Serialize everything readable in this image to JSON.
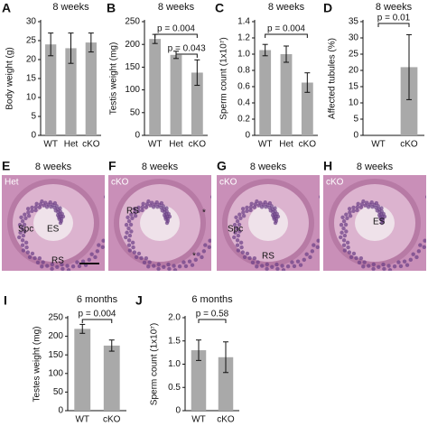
{
  "chart_data": [
    {
      "type": "bar",
      "letter": "A",
      "title": "8 weeks",
      "ylabel": "Body weight (g)",
      "categories": [
        "WT",
        "Het",
        "cKO"
      ],
      "values": [
        24,
        23,
        24.5
      ],
      "errors": [
        3,
        4,
        2.5
      ],
      "color": "#a9a9a9",
      "ylim": [
        0,
        30
      ],
      "yticks": [
        0,
        5,
        10,
        15,
        20,
        25,
        30
      ],
      "annotations": []
    },
    {
      "type": "bar",
      "letter": "B",
      "title": "8 weeks",
      "ylabel": "Testis weight (mg)",
      "categories": [
        "WT",
        "Het",
        "cKO"
      ],
      "values": [
        212,
        177,
        138
      ],
      "errors": [
        10,
        8,
        28
      ],
      "color": "#a9a9a9",
      "ylim": [
        0,
        250
      ],
      "yticks": [
        0,
        50,
        100,
        150,
        200,
        250
      ],
      "annotations": [
        "p = 0.004",
        "p = 0.043"
      ]
    },
    {
      "type": "bar",
      "letter": "C",
      "title": "8 weeks",
      "ylabel": "Sperm count (1x10⁷)",
      "categories": [
        "WT",
        "Het",
        "cKO"
      ],
      "values": [
        1.05,
        1.0,
        0.65
      ],
      "errors": [
        0.07,
        0.1,
        0.12
      ],
      "color": "#a9a9a9",
      "ylim": [
        0,
        1.4
      ],
      "yticks": [
        0,
        0.2,
        0.4,
        0.6,
        0.8,
        {
          "value": 1,
          "label": "1.0"
        },
        1.2,
        1.4
      ],
      "annotations": [
        "p = 0.004"
      ]
    },
    {
      "type": "bar",
      "letter": "D",
      "title": "8 weeks",
      "ylabel": "Affected tubules (%)",
      "categories": [
        "WT",
        "cKO"
      ],
      "values": [
        0,
        21
      ],
      "errors": [
        0,
        10
      ],
      "color": "#a9a9a9",
      "ylim": [
        0,
        35
      ],
      "yticks": [
        0,
        5,
        10,
        15,
        20,
        25,
        30,
        35
      ],
      "annotations": [
        "p = 0.01"
      ]
    },
    {
      "type": "bar",
      "letter": "I",
      "title": "6 months",
      "ylabel": "Testes weight (mg)",
      "categories": [
        "WT",
        "cKO"
      ],
      "values": [
        220,
        175
      ],
      "errors": [
        12,
        15
      ],
      "color": "#a9a9a9",
      "ylim": [
        0,
        250
      ],
      "yticks": [
        0,
        50,
        100,
        150,
        200,
        250
      ],
      "annotations": [
        "p = 0.004"
      ]
    },
    {
      "type": "bar",
      "letter": "J",
      "title": "6 months",
      "ylabel": "Sperm count (1x10⁷)",
      "categories": [
        "WT",
        "cKO"
      ],
      "values": [
        1.3,
        1.15
      ],
      "errors": [
        0.22,
        0.33
      ],
      "color": "#a9a9a9",
      "ylim": [
        0,
        2
      ],
      "yticks": [
        0,
        0.5,
        {
          "value": 1,
          "label": "1.0"
        },
        1.5,
        {
          "value": 2,
          "label": "2.0"
        }
      ],
      "annotations": [
        "p = 0.58"
      ]
    }
  ],
  "images": [
    {
      "letter": "E",
      "title": "8 weeks",
      "genotype": "Het",
      "labels": [
        "ES",
        "Spc",
        "RS"
      ]
    },
    {
      "letter": "F",
      "title": "8 weeks",
      "genotype": "cKO",
      "labels": [
        "RS",
        "*",
        "*"
      ]
    },
    {
      "letter": "G",
      "title": "8 weeks",
      "genotype": "cKO",
      "labels": [
        "Spc",
        "RS"
      ]
    },
    {
      "letter": "H",
      "title": "8 weeks",
      "genotype": "cKO",
      "labels": [
        "ES"
      ]
    }
  ]
}
